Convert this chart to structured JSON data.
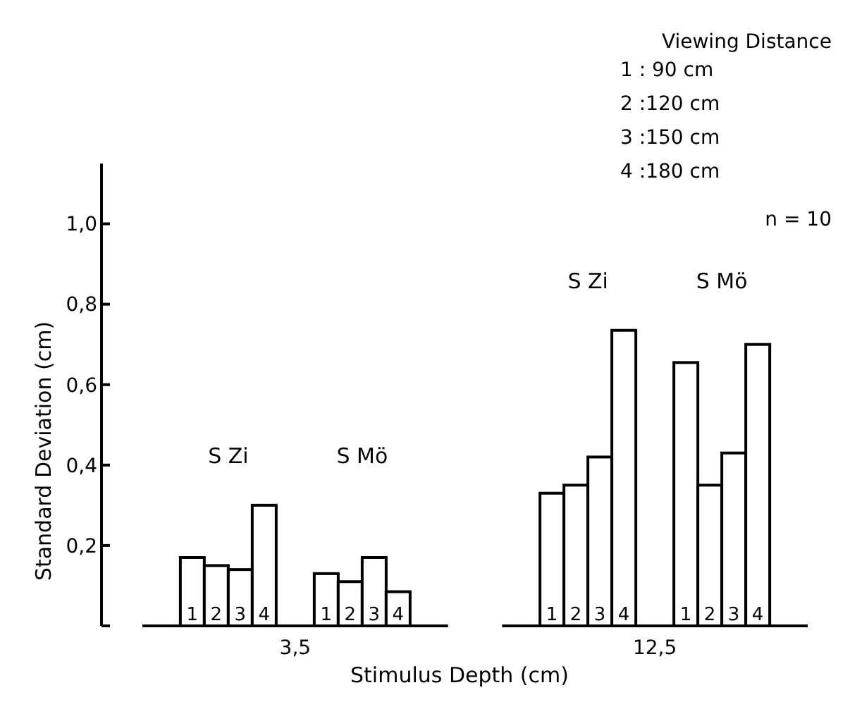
{
  "chart_data": {
    "type": "bar",
    "xlabel": "Stimulus Depth (cm)",
    "ylabel": "Standard Deviation (cm)",
    "legend_title": "Viewing Distance",
    "categories": [
      "3,5",
      "12,5"
    ],
    "series": [
      {
        "name": "1",
        "color": "#ffffff",
        "values": [
          0.17,
          0.33
        ]
      },
      {
        "name": "2",
        "color": "#ffffff",
        "values": [
          0.15,
          0.35
        ]
      },
      {
        "name": "3",
        "color": "#ffffff",
        "values": [
          0.14,
          0.42
        ]
      },
      {
        "name": "4",
        "color": "#ffffff",
        "values": [
          0.3,
          0.735
        ]
      },
      {
        "name": "1",
        "color": "#ffffff",
        "values": [
          0.13,
          0.655
        ]
      },
      {
        "name": "2",
        "color": "#ffffff",
        "values": [
          0.11,
          0.35
        ]
      },
      {
        "name": "3",
        "color": "#ffffff",
        "values": [
          0.17,
          0.43
        ]
      },
      {
        "name": "4",
        "color": "#ffffff",
        "values": [
          0.085,
          0.7
        ]
      }
    ],
    "ylim": [
      0,
      1.15
    ],
    "yticks": [
      {
        "value": 0,
        "label": null
      },
      {
        "value": 0.2,
        "label": "0,2"
      },
      {
        "value": 0.4,
        "label": "0,4"
      },
      {
        "value": 0.6,
        "label": "0,6"
      },
      {
        "value": 0.8,
        "label": "0,8"
      },
      {
        "value": 1.0,
        "label": "1,0"
      }
    ],
    "annotations": [
      "S Zi",
      "S Mö",
      "S Zi",
      "S Mö",
      "1 : 90 cm",
      "2 :120 cm",
      "3 :150 cm",
      "4 :180 cm",
      "n = 10"
    ]
  }
}
